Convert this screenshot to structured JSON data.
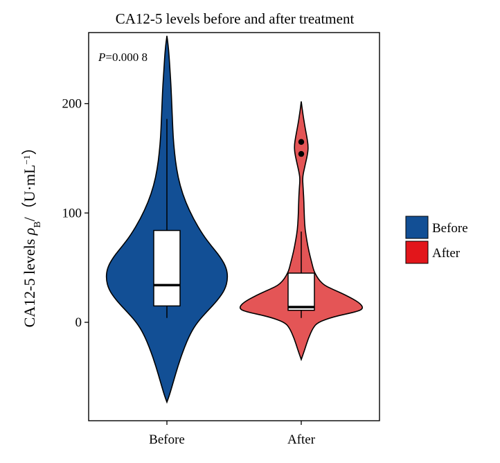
{
  "chart_data": {
    "type": "violin",
    "title": "CA12-5 levels before and after treatment",
    "ylabel": {
      "main": "CA12-5 levels ",
      "rho": "ρ",
      "rho_sub": "B",
      "slash": "/（U·mL",
      "unit_sup": "−1",
      "close": "）"
    },
    "xlabel": "",
    "ylim": [
      -90,
      265
    ],
    "yticks": [
      0,
      100,
      200
    ],
    "ytick_labels": [
      "0",
      "100",
      "200"
    ],
    "categories": [
      "Before",
      "After"
    ],
    "annotation": {
      "italic": "P",
      "rest": "=0.000 8"
    },
    "legend": {
      "position": "right",
      "items": [
        {
          "label": "Before",
          "color": "#124f95"
        },
        {
          "label": "After",
          "color": "#e2161b"
        }
      ]
    },
    "series": [
      {
        "name": "Before",
        "color": "#124f95",
        "violin_profile": [
          [
            -73,
            0.0
          ],
          [
            -66,
            0.04
          ],
          [
            -55,
            0.09
          ],
          [
            -40,
            0.16
          ],
          [
            -25,
            0.24
          ],
          [
            -10,
            0.34
          ],
          [
            0,
            0.44
          ],
          [
            10,
            0.58
          ],
          [
            20,
            0.73
          ],
          [
            30,
            0.84
          ],
          [
            40,
            0.88
          ],
          [
            50,
            0.86
          ],
          [
            60,
            0.77
          ],
          [
            70,
            0.64
          ],
          [
            80,
            0.52
          ],
          [
            95,
            0.38
          ],
          [
            110,
            0.27
          ],
          [
            125,
            0.19
          ],
          [
            140,
            0.14
          ],
          [
            155,
            0.11
          ],
          [
            170,
            0.09
          ],
          [
            185,
            0.08
          ],
          [
            200,
            0.07
          ],
          [
            215,
            0.06
          ],
          [
            230,
            0.045
          ],
          [
            245,
            0.03
          ],
          [
            255,
            0.015
          ],
          [
            262,
            0.0
          ]
        ],
        "box": {
          "q1": 15,
          "median": 34,
          "q3": 84,
          "whisker_low": 4,
          "whisker_high": 186
        },
        "outliers": []
      },
      {
        "name": "After",
        "color": "#e45556",
        "violin_profile": [
          [
            -34,
            0.0
          ],
          [
            -25,
            0.05
          ],
          [
            -15,
            0.1
          ],
          [
            -5,
            0.17
          ],
          [
            0,
            0.24
          ],
          [
            5,
            0.46
          ],
          [
            10,
            0.82
          ],
          [
            13,
            0.9
          ],
          [
            18,
            0.84
          ],
          [
            25,
            0.64
          ],
          [
            30,
            0.46
          ],
          [
            35,
            0.3
          ],
          [
            45,
            0.19
          ],
          [
            55,
            0.15
          ],
          [
            65,
            0.11
          ],
          [
            75,
            0.08
          ],
          [
            85,
            0.055
          ],
          [
            95,
            0.045
          ],
          [
            105,
            0.04
          ],
          [
            115,
            0.035
          ],
          [
            125,
            0.025
          ],
          [
            130,
            0.02
          ],
          [
            135,
            0.025
          ],
          [
            145,
            0.06
          ],
          [
            155,
            0.095
          ],
          [
            162,
            0.1
          ],
          [
            170,
            0.08
          ],
          [
            180,
            0.05
          ],
          [
            190,
            0.025
          ],
          [
            197,
            0.01
          ],
          [
            202,
            0.0
          ]
        ],
        "box": {
          "q1": 11,
          "median": 14,
          "q3": 45,
          "whisker_low": 4,
          "whisker_high": 83
        },
        "outliers": [
          165,
          154
        ]
      }
    ]
  }
}
